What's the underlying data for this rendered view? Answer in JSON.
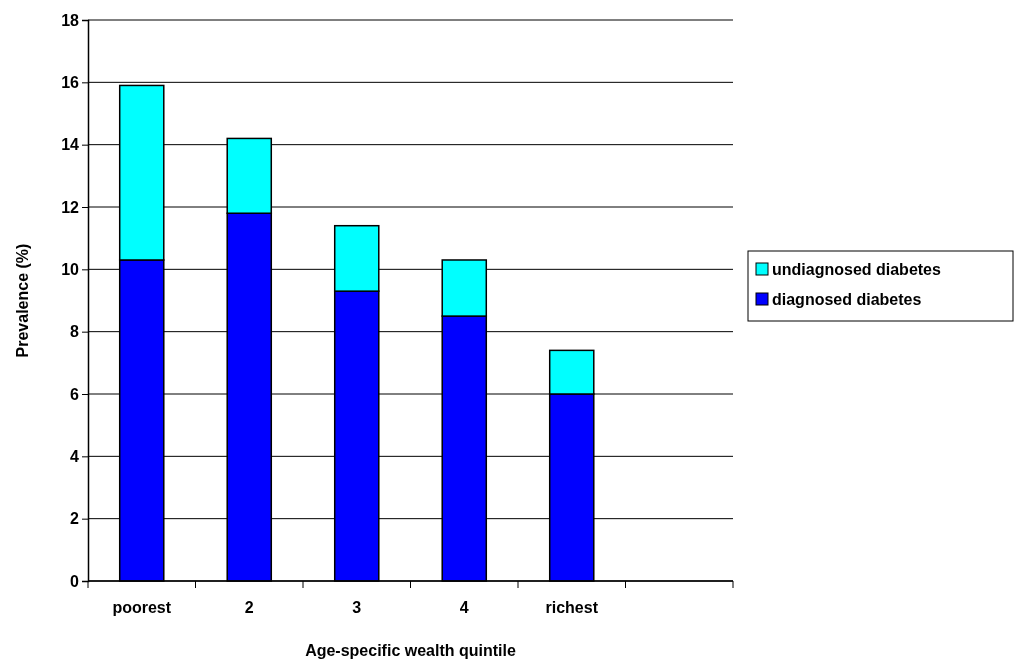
{
  "chart_data": {
    "type": "bar",
    "stacked": true,
    "xlabel": "Age-specific wealth quintile",
    "ylabel": "Prevalence (%)",
    "categories": [
      "poorest",
      "2",
      "3",
      "4",
      "richest",
      null
    ],
    "series": [
      {
        "name": "diagnosed diabetes",
        "color": "#0000ff",
        "values": [
          10.3,
          11.8,
          9.3,
          8.5,
          6.0,
          null
        ]
      },
      {
        "name": "undiagnosed diabetes",
        "color": "#00ffff",
        "values": [
          5.6,
          2.4,
          2.1,
          1.8,
          1.4,
          null
        ]
      }
    ],
    "ylim": [
      0,
      18
    ],
    "yticks": [
      0,
      2,
      4,
      6,
      8,
      10,
      12,
      14,
      16,
      18
    ],
    "grid": "y",
    "legend": "right"
  }
}
